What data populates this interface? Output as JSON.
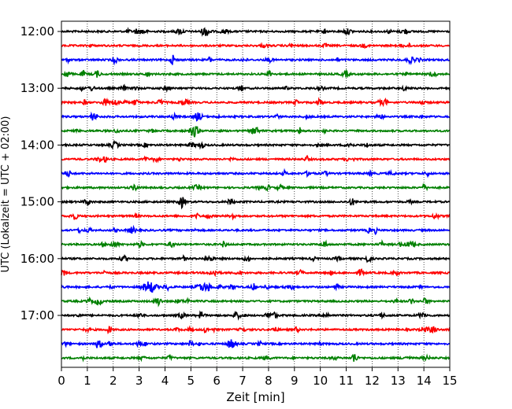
{
  "chart_data": {
    "type": "line",
    "xlabel": "Zeit  [min]",
    "ylabel": "UTC (Lokalzeit = UTC + 02:00)",
    "xlim": [
      0,
      15
    ],
    "x_ticks": [
      0,
      1,
      2,
      3,
      4,
      5,
      6,
      7,
      8,
      9,
      10,
      11,
      12,
      13,
      14,
      15
    ],
    "y_tick_labels": [
      "12:00",
      "13:00",
      "14:00",
      "15:00",
      "16:00",
      "17:00"
    ],
    "rows_per_hour": 4,
    "row_start_times": [
      "12:00",
      "12:15",
      "12:30",
      "12:45",
      "13:00",
      "13:15",
      "13:30",
      "13:45",
      "14:00",
      "14:15",
      "14:30",
      "14:45",
      "15:00",
      "15:15",
      "15:30",
      "15:45",
      "16:00",
      "16:15",
      "16:30",
      "16:45",
      "17:00",
      "17:15",
      "17:30",
      "17:45"
    ],
    "row_colors": [
      "#000000",
      "#ff0000",
      "#0000ff",
      "#008000"
    ],
    "grid": {
      "vertical_dotted": true
    },
    "notable_event": {
      "row_time": "16:30",
      "x_min": 3.4
    }
  }
}
